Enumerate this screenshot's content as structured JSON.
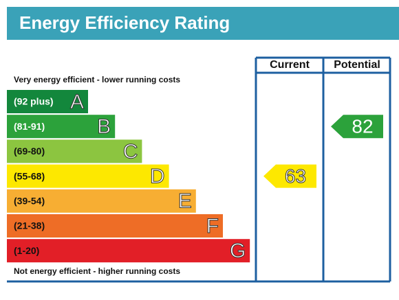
{
  "header": {
    "title": "Energy Efficiency Rating"
  },
  "columns": [
    "Current",
    "Potential"
  ],
  "top_note": "Very energy efficient - lower running costs",
  "bottom_note": "Not energy efficient - higher running costs",
  "bands": [
    {
      "range": "(92 plus)",
      "letter": "A",
      "color": "#13873c"
    },
    {
      "range": "(81-91)",
      "letter": "B",
      "color": "#2ca23b"
    },
    {
      "range": "(69-80)",
      "letter": "C",
      "color": "#8cc540"
    },
    {
      "range": "(55-68)",
      "letter": "D",
      "color": "#fde800"
    },
    {
      "range": "(39-54)",
      "letter": "E",
      "color": "#f7ae33"
    },
    {
      "range": "(21-38)",
      "letter": "F",
      "color": "#ee6d26"
    },
    {
      "range": "(1-20)",
      "letter": "G",
      "color": "#e21f27"
    }
  ],
  "current": {
    "value": 63,
    "band": 3,
    "color": "#fde800"
  },
  "potential": {
    "value": 82,
    "band": 1,
    "color": "#2ca23b"
  }
}
